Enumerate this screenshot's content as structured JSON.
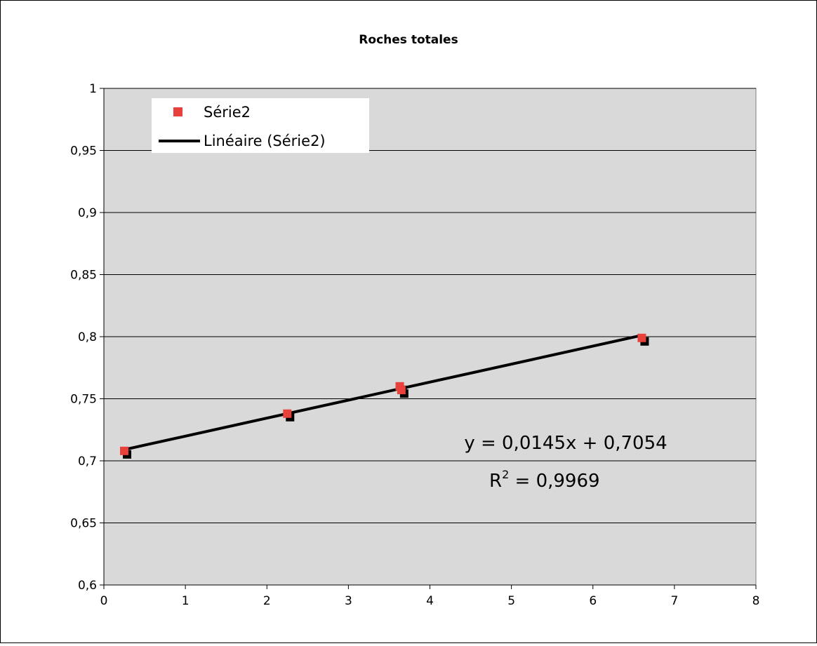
{
  "chart_data": {
    "type": "scatter",
    "title": "Roches totales",
    "xlabel": "",
    "ylabel": "",
    "xlim": [
      0,
      8
    ],
    "ylim": [
      0.6,
      1
    ],
    "x_ticks": [
      "0",
      "1",
      "2",
      "3",
      "4",
      "5",
      "6",
      "7",
      "8"
    ],
    "y_ticks": [
      "0,6",
      "0,65",
      "0,7",
      "0,75",
      "0,8",
      "0,85",
      "0,9",
      "0,95",
      "1"
    ],
    "grid": true,
    "legend_position": "top-left",
    "series": [
      {
        "name": "Série2",
        "color": "#e8413c",
        "points": [
          {
            "x": 0.25,
            "y": 0.708
          },
          {
            "x": 2.25,
            "y": 0.738
          },
          {
            "x": 3.63,
            "y": 0.76
          },
          {
            "x": 3.65,
            "y": 0.757
          },
          {
            "x": 6.6,
            "y": 0.799
          }
        ]
      }
    ],
    "trendline": {
      "name": "Linéaire (Série2)",
      "color": "#000000",
      "slope": 0.0145,
      "intercept": 0.7054,
      "x_range": [
        0.25,
        6.6
      ],
      "equation_text": "y = 0,0145x + 0,7054",
      "r2_label": "R",
      "r2_sup": "2",
      "r2_value_text": " = 0,9969"
    },
    "colors": {
      "plot_background": "#d9d9d9",
      "grid": "#000000",
      "marker": "#e8413c",
      "marker_shadow": "#000000"
    }
  }
}
